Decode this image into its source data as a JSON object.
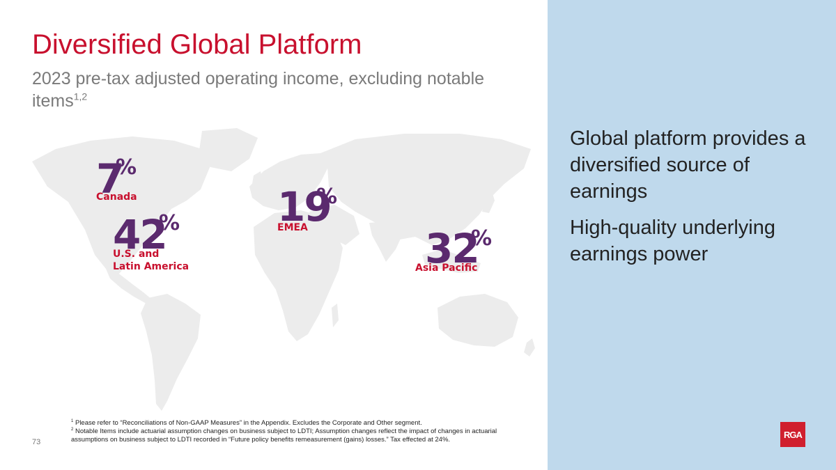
{
  "slide": {
    "title": "Diversified Global Platform",
    "subtitle": "2023 pre-tax adjusted operating income, excluding notable items",
    "subtitle_superscript": "1,2",
    "page_number": "73",
    "logo_text": "RGA"
  },
  "map": {
    "icon": "world-map-icon",
    "regions": [
      {
        "name": "Canada",
        "percent": "7",
        "sign": "%"
      },
      {
        "name": "U.S. and Latin America",
        "name_line1": "U.S. and",
        "name_line2": "Latin America",
        "percent": "42",
        "sign": "%"
      },
      {
        "name": "EMEA",
        "percent": "19",
        "sign": "%"
      },
      {
        "name": "Asia Pacific",
        "percent": "32",
        "sign": "%"
      }
    ]
  },
  "bullets": [
    "Global platform provides a diversified source of earnings",
    "High-quality underlying earnings power"
  ],
  "footnotes": [
    {
      "marker": "1",
      "text": "Please refer to “Reconciliations of Non-GAAP Measures” in the Appendix. Excludes the Corporate and Other segment."
    },
    {
      "marker": "2",
      "text": "Notable Items include actuarial assumption changes on business subject to LDTI; Assumption changes reflect the impact of changes in actuarial assumptions on business subject to LDTI recorded in “Future policy benefits remeasurement (gains) losses.” Tax effected at 24%."
    }
  ],
  "colors": {
    "title_red": "#c8102e",
    "percent_purple": "#5b2a6e",
    "map_gray": "#ececec",
    "panel_blue": "#bfd9ec",
    "logo_red": "#d01f2e"
  }
}
